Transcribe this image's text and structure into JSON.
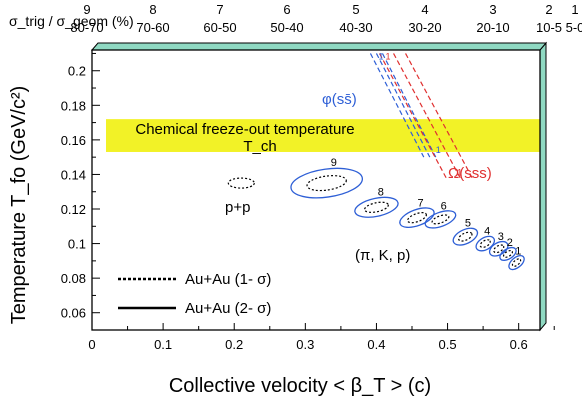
{
  "chart_data": {
    "type": "scatter",
    "xlabel": "Collective velocity < β_T > (c)",
    "ylabel": "Temperature T_fo (GeV/c²)",
    "xlim": [
      0,
      0.63
    ],
    "ylim": [
      0.05,
      0.212
    ],
    "xticks": [
      "0",
      "0.1",
      "0.2",
      "0.3",
      "0.4",
      "0.5",
      "0.6"
    ],
    "xtick_values": [
      0,
      0.1,
      0.2,
      0.3,
      0.4,
      0.5,
      0.6
    ],
    "yticks": [
      "0.06",
      "0.08",
      "0.1",
      "0.12",
      "0.14",
      "0.16",
      "0.18",
      "0.2"
    ],
    "ytick_values": [
      0.06,
      0.08,
      0.1,
      0.12,
      0.14,
      0.16,
      0.18,
      0.2
    ],
    "top_axis": {
      "label": "σ_trig / σ_geom (%)",
      "bins": [
        {
          "number": "9",
          "range": "80-70"
        },
        {
          "number": "8",
          "range": "70-60"
        },
        {
          "number": "7",
          "range": "60-50"
        },
        {
          "number": "6",
          "range": "50-40"
        },
        {
          "number": "5",
          "range": "40-30"
        },
        {
          "number": "4",
          "range": "30-20"
        },
        {
          "number": "3",
          "range": "20-10"
        },
        {
          "number": "2",
          "range": "10-5"
        },
        {
          "number": "1",
          "range": "5-0"
        }
      ]
    },
    "band": {
      "label": "Chemical freeze-out temperature",
      "sublabel": "T_ch",
      "ymin": 0.153,
      "ymax": 0.172,
      "xmin": 0,
      "xmax": 0.63,
      "color": "#f2f227"
    },
    "series": [
      {
        "name": "(π, K, p)",
        "color": "#2e5fd6",
        "points": [
          {
            "label": "9",
            "x": 0.33,
            "y": 0.135
          },
          {
            "label": "8",
            "x": 0.4,
            "y": 0.121
          },
          {
            "label": "7",
            "x": 0.457,
            "y": 0.115
          },
          {
            "label": "6",
            "x": 0.49,
            "y": 0.114
          },
          {
            "label": "5",
            "x": 0.525,
            "y": 0.104
          },
          {
            "label": "4",
            "x": 0.553,
            "y": 0.1
          },
          {
            "label": "3",
            "x": 0.572,
            "y": 0.097
          },
          {
            "label": "2",
            "x": 0.585,
            "y": 0.094
          },
          {
            "label": "1",
            "x": 0.597,
            "y": 0.089
          }
        ]
      },
      {
        "name": "p+p",
        "color": "#000000",
        "points": [
          {
            "x": 0.21,
            "y": 0.135
          }
        ]
      },
      {
        "name": "φ(ss̄)",
        "color": "#2e5fd6",
        "points": [
          {
            "label": "1",
            "x": 0.4,
            "y": 0.21
          },
          {
            "label": "1",
            "x": 0.475,
            "y": 0.15
          }
        ]
      },
      {
        "name": "Ω(sss)",
        "color": "#e03030",
        "points": [
          {
            "label": "1",
            "x": 0.41,
            "y": 0.21
          },
          {
            "label": "1",
            "x": 0.505,
            "y": 0.137
          }
        ]
      }
    ],
    "legend": {
      "position": "bottom-left",
      "entries": [
        {
          "label": "Au+Au (1- σ)",
          "style": "dotted"
        },
        {
          "label": "Au+Au (2- σ)",
          "style": "solid"
        }
      ]
    },
    "panel_edge_color": "#8fd9c2"
  }
}
